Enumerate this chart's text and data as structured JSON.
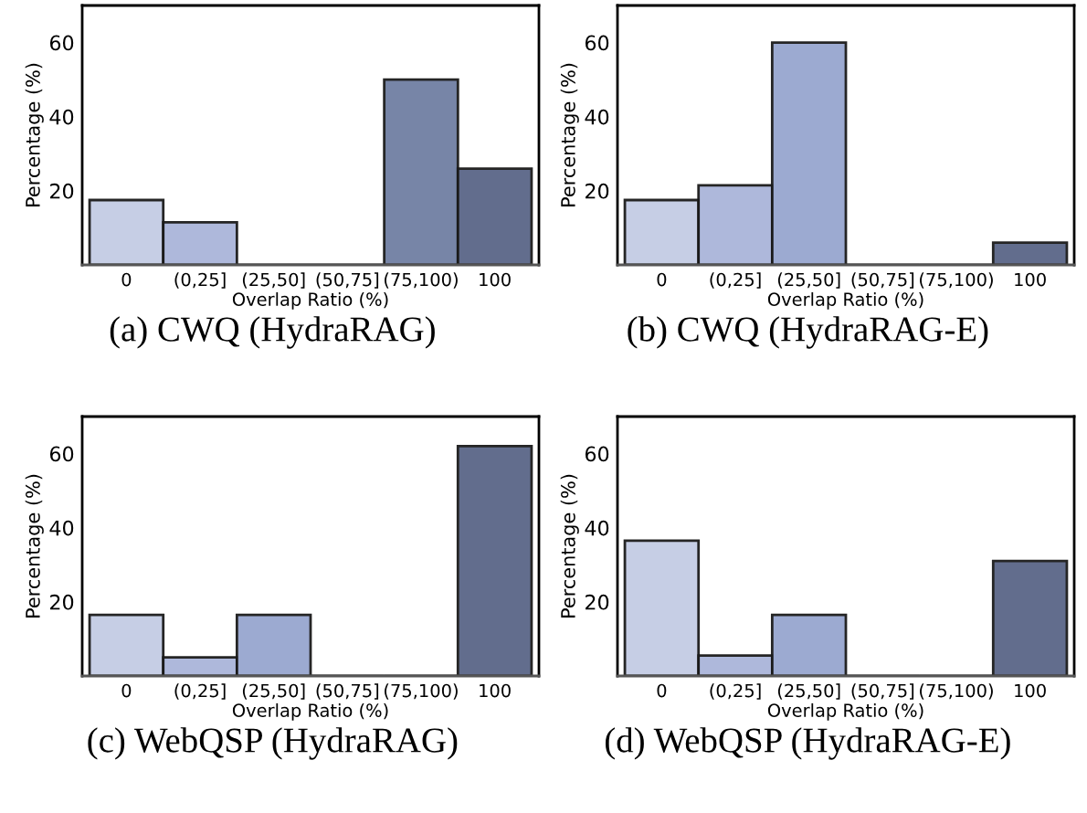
{
  "chart_data": [
    {
      "type": "bar",
      "title": "(a) CWQ (HydraRAG)",
      "xlabel": "Overlap Ratio (%)",
      "ylabel": "Percentage (%)",
      "categories": [
        "0",
        "(0,25]",
        "(25,50]",
        "(50,75]",
        "(75,100)",
        "100"
      ],
      "values": [
        17.5,
        11.5,
        0,
        0,
        50,
        26
      ],
      "colors": [
        "#c3cce4",
        "#aab5da",
        "#97a6cf",
        "#8390b8",
        "#707fa3",
        "#5a6687"
      ],
      "ylim": [
        0,
        70
      ],
      "yticks": [
        20,
        40,
        60
      ],
      "grid": false
    },
    {
      "type": "bar",
      "title": "(b) CWQ (HydraRAG-E)",
      "xlabel": "Overlap Ratio (%)",
      "ylabel": "Percentage (%)",
      "categories": [
        "0",
        "(0,25]",
        "(25,50]",
        "(50,75]",
        "(75,100)",
        "100"
      ],
      "values": [
        17.5,
        21.5,
        60,
        0,
        0,
        6
      ],
      "colors": [
        "#c3cce4",
        "#aab5da",
        "#97a6cf",
        "#8390b8",
        "#707fa3",
        "#5a6687"
      ],
      "ylim": [
        0,
        70
      ],
      "yticks": [
        20,
        40,
        60
      ],
      "grid": false
    },
    {
      "type": "bar",
      "title": "(c) WebQSP (HydraRAG)",
      "xlabel": "Overlap Ratio (%)",
      "ylabel": "Percentage (%)",
      "categories": [
        "0",
        "(0,25]",
        "(25,50]",
        "(50,75]",
        "(75,100)",
        "100"
      ],
      "values": [
        16.5,
        5,
        16.5,
        0,
        0,
        62
      ],
      "colors": [
        "#c3cce4",
        "#aab5da",
        "#97a6cf",
        "#8390b8",
        "#707fa3",
        "#5a6687"
      ],
      "ylim": [
        0,
        70
      ],
      "yticks": [
        20,
        40,
        60
      ],
      "grid": false
    },
    {
      "type": "bar",
      "title": "(d) WebQSP (HydraRAG-E)",
      "xlabel": "Overlap Ratio (%)",
      "ylabel": "Percentage (%)",
      "categories": [
        "0",
        "(0,25]",
        "(25,50]",
        "(50,75]",
        "(75,100)",
        "100"
      ],
      "values": [
        36.5,
        5.5,
        16.5,
        0,
        0,
        31
      ],
      "colors": [
        "#c3cce4",
        "#aab5da",
        "#97a6cf",
        "#8390b8",
        "#707fa3",
        "#5a6687"
      ],
      "ylim": [
        0,
        70
      ],
      "yticks": [
        20,
        40,
        60
      ],
      "grid": false
    }
  ]
}
